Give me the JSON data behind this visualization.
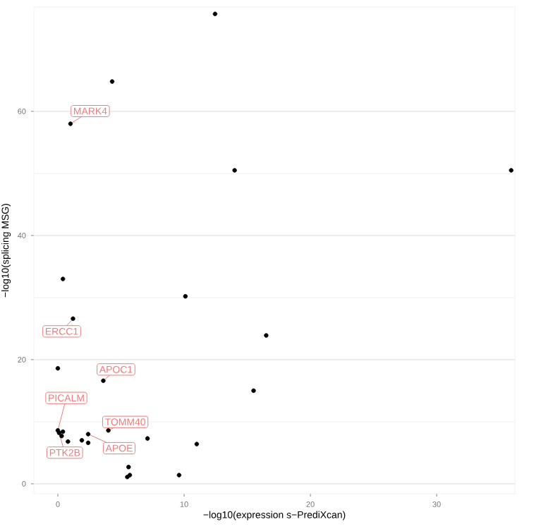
{
  "chart_data": {
    "type": "scatter",
    "xlabel": "−log10(expression s−PrediXcan)",
    "ylabel": "−log10(splicing MSG)",
    "x": [
      12.45,
      4.3,
      1.0,
      14.0,
      35.9,
      0.4,
      10.1,
      1.2,
      16.5,
      0.0,
      3.6,
      15.5,
      0.0,
      0.1,
      0.3,
      0.4,
      0.8,
      1.9,
      2.4,
      2.4,
      4.0,
      7.1,
      11.0,
      5.6,
      5.5,
      5.7,
      9.6
    ],
    "values": [
      75.7,
      64.8,
      58.0,
      50.5,
      50.5,
      33.0,
      30.2,
      26.6,
      23.9,
      18.6,
      16.6,
      15.0,
      8.6,
      8.2,
      7.7,
      8.4,
      6.8,
      7.0,
      8.0,
      6.6,
      8.6,
      7.3,
      6.4,
      2.7,
      1.1,
      1.4,
      1.4
    ],
    "color": "#000000",
    "marker": "circle",
    "grid": "y",
    "xlim": [
      -1.9,
      36.2
    ],
    "ylim": [
      -1.6,
      76.8
    ],
    "xticks": [
      0,
      10,
      20,
      30
    ],
    "yticks": [
      0,
      20,
      40,
      60
    ],
    "annotations": [
      {
        "text": "MARK4",
        "x": 1.0,
        "y": 58.0
      },
      {
        "text": "ERCC1",
        "x": 1.2,
        "y": 26.6
      },
      {
        "text": "APOC1",
        "x": 3.6,
        "y": 16.6
      },
      {
        "text": "PICALM",
        "x": 0.0,
        "y": 8.6
      },
      {
        "text": "TOMM40",
        "x": 4.0,
        "y": 8.6
      },
      {
        "text": "APOE",
        "x": 2.4,
        "y": 8.0
      },
      {
        "text": "PTK2B",
        "x": 0.1,
        "y": 8.2
      }
    ]
  }
}
